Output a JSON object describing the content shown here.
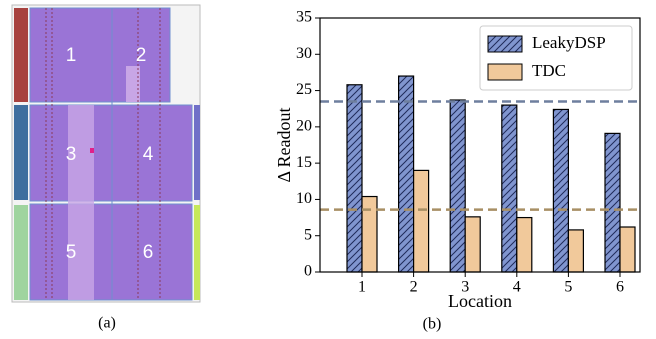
{
  "floorplan": {
    "regions": [
      "1",
      "2",
      "3",
      "4",
      "5",
      "6"
    ],
    "caption": "(a)"
  },
  "chart_data": {
    "type": "bar",
    "caption": "(b)",
    "x_label": "Location",
    "y_label": "Δ Readout",
    "categories": [
      "1",
      "2",
      "3",
      "4",
      "5",
      "6"
    ],
    "series": [
      {
        "name": "LeakyDSP",
        "color": "#8095cf",
        "hatch": true,
        "values": [
          25.8,
          27.0,
          23.7,
          23.0,
          22.4,
          19.1
        ]
      },
      {
        "name": "TDC",
        "color": "#f1c99b",
        "hatch": false,
        "values": [
          10.4,
          14.0,
          7.6,
          7.5,
          5.8,
          6.2
        ]
      }
    ],
    "reference_lines": [
      {
        "value": 23.5,
        "color": "#6e7f9e"
      },
      {
        "value": 8.6,
        "color": "#a88f64"
      }
    ],
    "ylim": [
      0,
      35
    ],
    "yticks": [
      0,
      5,
      10,
      15,
      20,
      25,
      30,
      35
    ],
    "legend": "top-right"
  }
}
